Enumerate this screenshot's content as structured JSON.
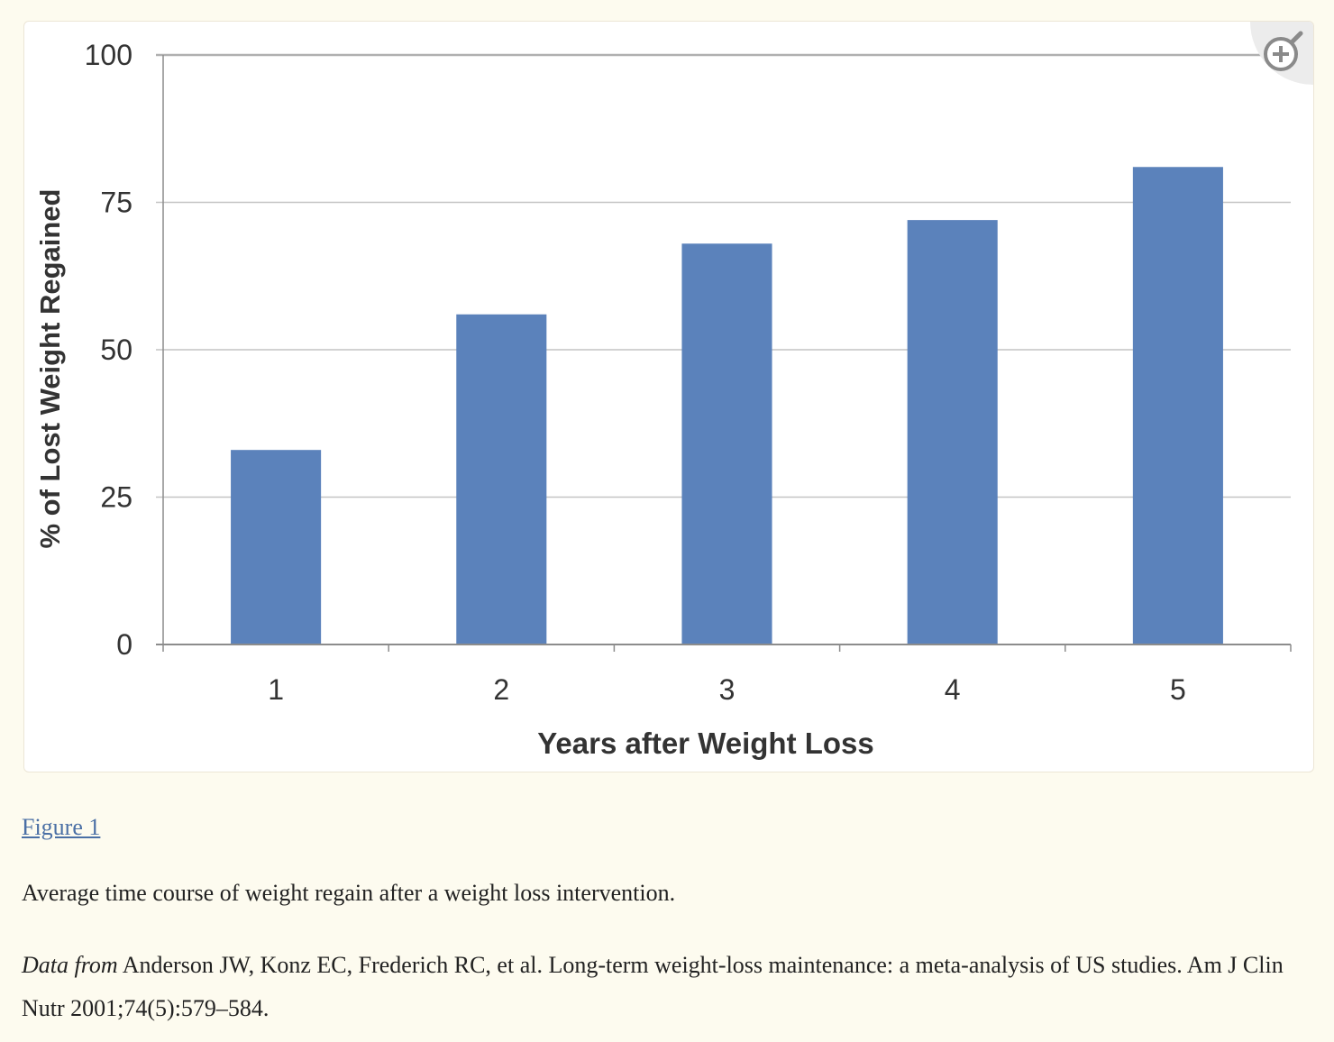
{
  "chart_data": {
    "type": "bar",
    "categories": [
      "1",
      "2",
      "3",
      "4",
      "5"
    ],
    "values": [
      33,
      56,
      68,
      72,
      81
    ],
    "ylim": [
      0,
      100
    ],
    "yticks": [
      0,
      25,
      50,
      75,
      100
    ],
    "xlabel": "Years after Weight Loss",
    "ylabel": "% of Lost Weight Regained",
    "grid": true,
    "legend": "none",
    "bar_color": "#5b82bb"
  },
  "figure": {
    "link_label": "Figure 1",
    "caption": "Average time course of weight regain after a weight loss intervention.",
    "citation_prefix": "Data from",
    "citation_text": " Anderson JW, Konz EC, Frederich RC, et al. Long-term weight-loss maintenance: a meta-analysis of US studies. Am J Clin Nutr 2001;74(5):579–584.",
    "zoom_icon": "zoom-in-icon"
  }
}
